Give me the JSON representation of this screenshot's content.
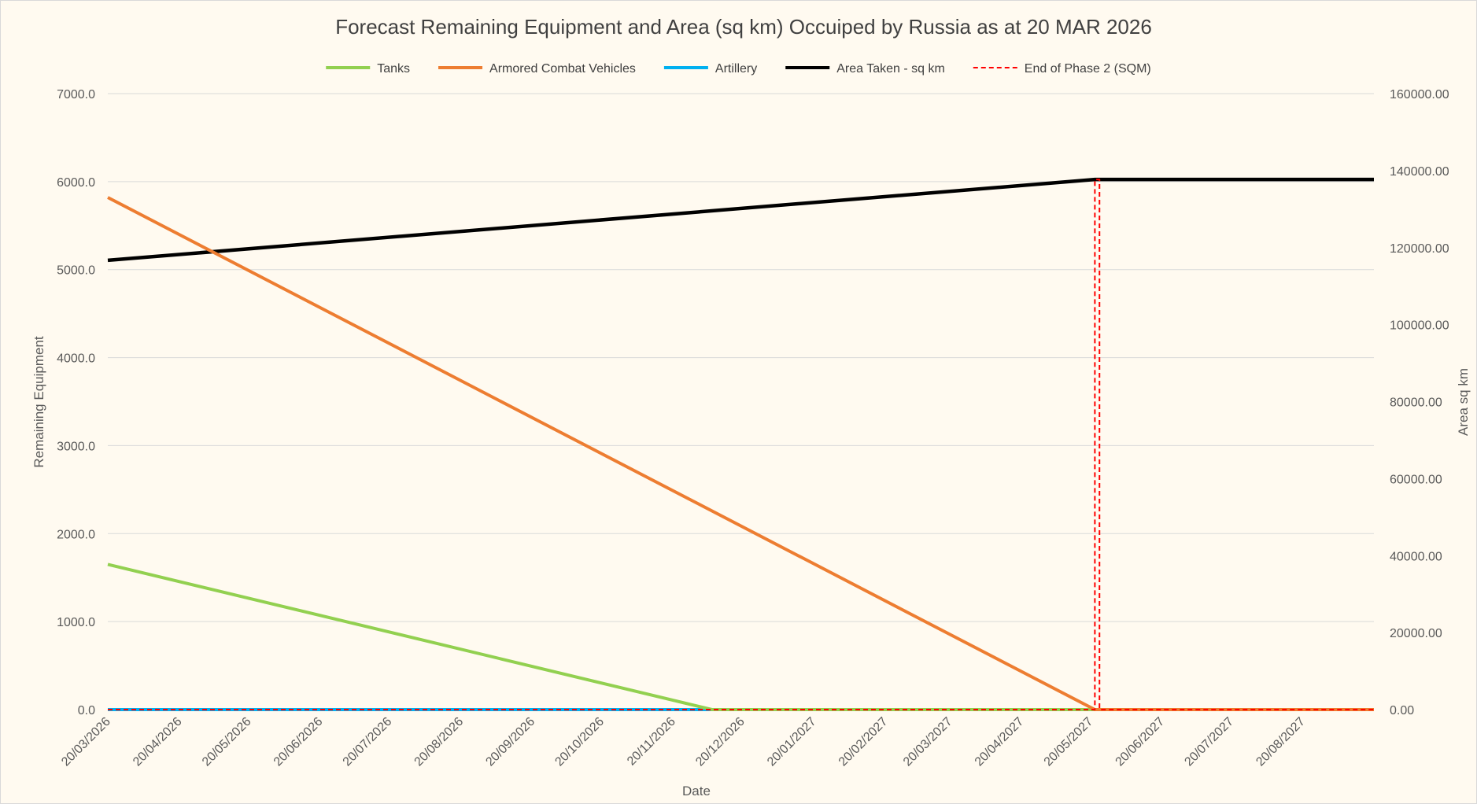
{
  "chart_data": {
    "type": "line",
    "title": "Forecast Remaining Equipment and Area (sq km) Occuiped by Russia as at 20 MAR 2026",
    "xlabel": "Date",
    "ylabel": "Remaining Equipment",
    "y2label": "Area sq km",
    "ylim": [
      0,
      7000
    ],
    "y2lim": [
      0,
      160000
    ],
    "y_ticks": [
      "0.0",
      "1000.0",
      "2000.0",
      "3000.0",
      "4000.0",
      "5000.0",
      "6000.0",
      "7000.0"
    ],
    "y2_ticks": [
      "0.00",
      "20000.00",
      "40000.00",
      "60000.00",
      "80000.00",
      "100000.00",
      "120000.00",
      "140000.00",
      "160000.00"
    ],
    "x_start": "2026-03-20",
    "x_end": "2027-09-20",
    "x_ticks": [
      "20/03/2026",
      "20/04/2026",
      "20/05/2026",
      "20/06/2026",
      "20/07/2026",
      "20/08/2026",
      "20/09/2026",
      "20/10/2026",
      "20/11/2026",
      "20/12/2026",
      "20/01/2027",
      "20/02/2027",
      "20/03/2027",
      "20/04/2027",
      "20/05/2027",
      "20/06/2027",
      "20/07/2027",
      "20/08/2027"
    ],
    "grid": true,
    "legend_position": "top",
    "series": [
      {
        "name": "Tanks",
        "axis": "left",
        "color": "#92d050",
        "dash": "solid",
        "x": [
          "2026-03-20",
          "2026-12-07",
          "2027-09-20"
        ],
        "y": [
          1650,
          0,
          0
        ]
      },
      {
        "name": "Armored Combat Vehicles",
        "axis": "left",
        "color": "#ed7d31",
        "dash": "solid",
        "x": [
          "2026-03-20",
          "2027-05-22",
          "2027-09-20"
        ],
        "y": [
          5820,
          0,
          0
        ]
      },
      {
        "name": "Artillery",
        "axis": "left",
        "color": "#00b0f0",
        "dash": "solid",
        "x": [
          "2026-03-20",
          "2027-09-20"
        ],
        "y": [
          0,
          0
        ]
      },
      {
        "name": "Area Taken - sq km",
        "axis": "right",
        "color": "#000000",
        "dash": "solid",
        "x": [
          "2026-03-20",
          "2027-05-22",
          "2027-09-20"
        ],
        "y": [
          116700,
          137700,
          137700
        ]
      },
      {
        "name": "End of Phase 2 (SQM)",
        "axis": "right",
        "color": "#ff0000",
        "dash": "dashed",
        "x": [
          "2026-03-20",
          "2027-05-22",
          "2027-05-22",
          "2027-05-24",
          "2027-05-24",
          "2027-09-20"
        ],
        "y": [
          0,
          0,
          137700,
          137700,
          0,
          0
        ]
      }
    ]
  }
}
